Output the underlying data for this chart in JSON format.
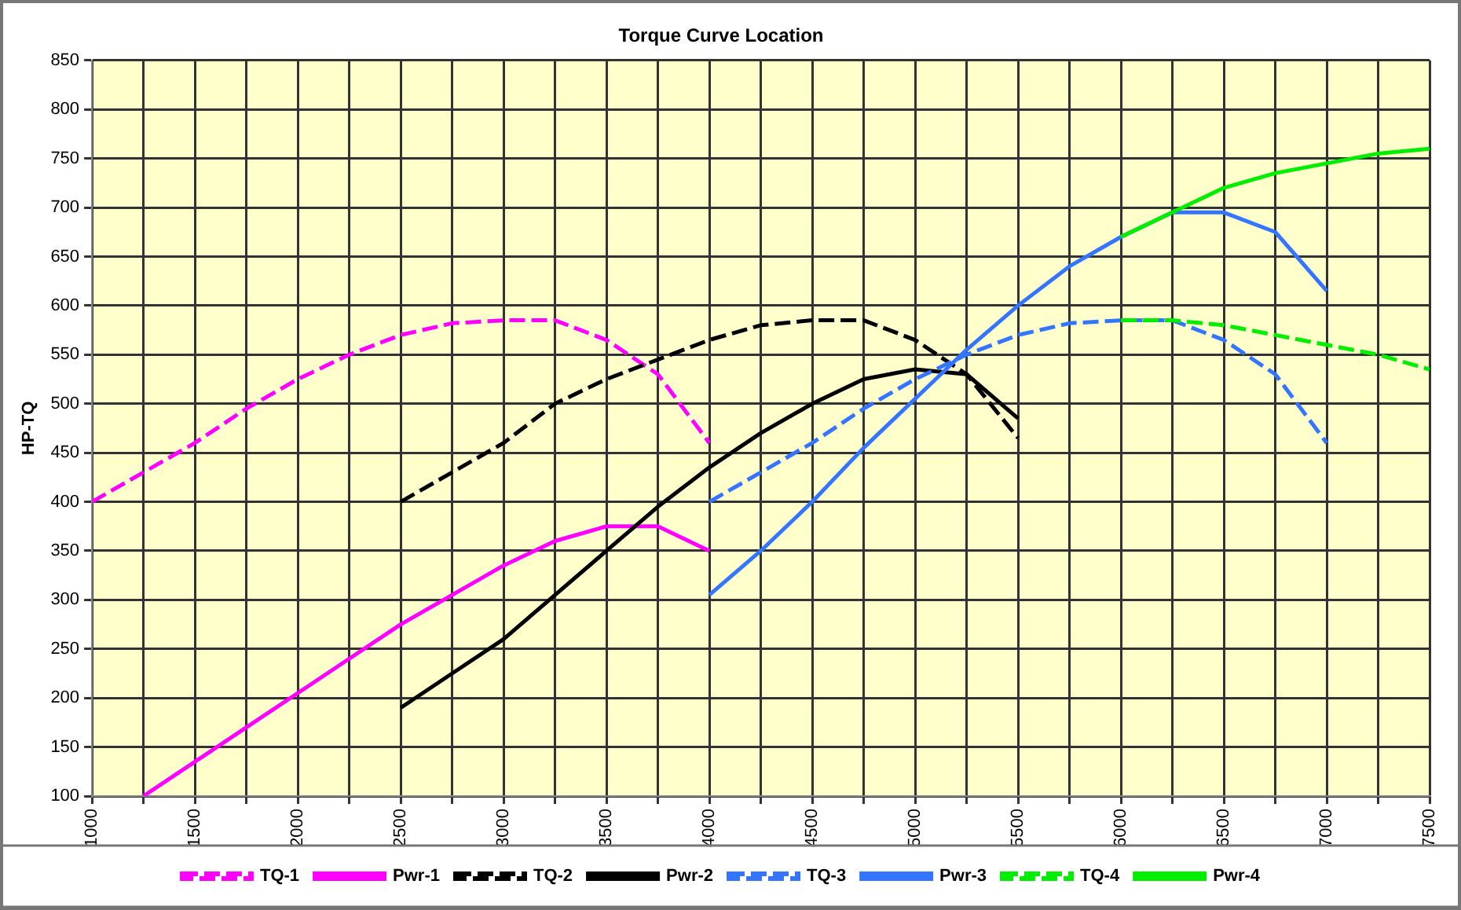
{
  "chart_data": {
    "type": "line",
    "title": "Torque Curve Location",
    "ylabel": "HP-TQ",
    "xlim": [
      1000,
      7500
    ],
    "xticks": [
      1000,
      {
        "value": 1250,
        "label": null
      },
      1500,
      {
        "value": 1750,
        "label": null
      },
      2000,
      {
        "value": 2250,
        "label": null
      },
      2500,
      {
        "value": 2750,
        "label": null
      },
      3000,
      {
        "value": 3250,
        "label": null
      },
      3500,
      {
        "value": 3750,
        "label": null
      },
      4000,
      {
        "value": 4250,
        "label": null
      },
      4500,
      {
        "value": 4750,
        "label": null
      },
      5000,
      {
        "value": 5250,
        "label": null
      },
      5500,
      {
        "value": 5750,
        "label": null
      },
      6000,
      {
        "value": 6250,
        "label": null
      },
      6500,
      {
        "value": 6750,
        "label": null
      },
      7000,
      {
        "value": 7250,
        "label": null
      },
      7500
    ],
    "ylim": [
      100,
      850
    ],
    "yticks": [
      100,
      150,
      200,
      250,
      300,
      350,
      400,
      450,
      500,
      550,
      600,
      650,
      700,
      750,
      800,
      850
    ],
    "grid": true,
    "legend": "bottom",
    "marker": "none",
    "series": [
      {
        "name": "TQ-1",
        "color": "#ff00ff",
        "line_style": "dashed",
        "x": [
          1000,
          1250,
          1500,
          1750,
          2000,
          2250,
          2500,
          2750,
          3000,
          3250,
          3500,
          3750,
          4000
        ],
        "values": [
          400,
          430,
          460,
          495,
          525,
          550,
          570,
          582,
          585,
          585,
          565,
          530,
          460
        ]
      },
      {
        "name": "Pwr-1",
        "color": "#ff00ff",
        "line_style": "solid",
        "x": [
          1250,
          1500,
          1750,
          2000,
          2250,
          2500,
          2750,
          3000,
          3250,
          3500,
          3750,
          4000
        ],
        "values": [
          100,
          135,
          170,
          205,
          240,
          275,
          305,
          335,
          360,
          375,
          375,
          350
        ]
      },
      {
        "name": "TQ-2",
        "color": "#000000",
        "line_style": "dashed",
        "x": [
          2500,
          2750,
          3000,
          3250,
          3500,
          3750,
          4000,
          4250,
          4500,
          4750,
          5000,
          5250,
          5500
        ],
        "values": [
          400,
          430,
          460,
          500,
          525,
          545,
          565,
          580,
          585,
          585,
          565,
          530,
          465
        ]
      },
      {
        "name": "Pwr-2",
        "color": "#000000",
        "line_style": "solid",
        "x": [
          2500,
          2750,
          3000,
          3250,
          3500,
          3750,
          4000,
          4250,
          4500,
          4750,
          5000,
          5250,
          5500
        ],
        "values": [
          190,
          225,
          260,
          305,
          350,
          395,
          435,
          470,
          500,
          525,
          535,
          530,
          485
        ]
      },
      {
        "name": "TQ-3",
        "color": "#3375ff",
        "line_style": "dashed",
        "x": [
          4000,
          4250,
          4500,
          4750,
          5000,
          5250,
          5500,
          5750,
          6000,
          6250,
          6500,
          6750,
          7000
        ],
        "values": [
          400,
          430,
          460,
          495,
          525,
          550,
          570,
          582,
          585,
          585,
          565,
          530,
          460
        ]
      },
      {
        "name": "Pwr-3",
        "color": "#3375ff",
        "line_style": "solid",
        "x": [
          4000,
          4250,
          4500,
          4750,
          5000,
          5250,
          5500,
          5750,
          6000,
          6250,
          6500,
          6750,
          7000
        ],
        "values": [
          305,
          350,
          400,
          455,
          505,
          555,
          600,
          640,
          670,
          695,
          695,
          675,
          615
        ]
      },
      {
        "name": "TQ-4",
        "color": "#00ee00",
        "line_style": "dashed",
        "x": [
          6000,
          6250,
          6500,
          6750,
          7000,
          7250,
          7500
        ],
        "values": [
          585,
          585,
          580,
          570,
          560,
          550,
          535
        ]
      },
      {
        "name": "Pwr-4",
        "color": "#00ee00",
        "line_style": "solid",
        "x": [
          6000,
          6250,
          6500,
          6750,
          7000,
          7250,
          7500
        ],
        "values": [
          670,
          695,
          720,
          735,
          745,
          755,
          760
        ]
      }
    ]
  }
}
